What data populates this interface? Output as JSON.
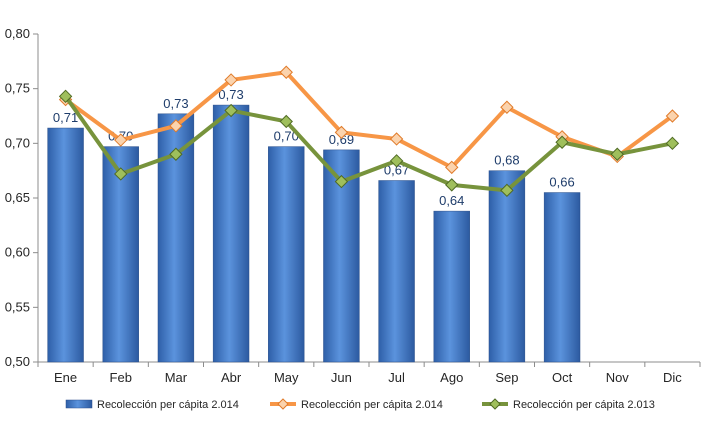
{
  "chart_data": {
    "type": "bar",
    "title": "",
    "xlabel": "",
    "ylabel": "",
    "categories": [
      "Ene",
      "Feb",
      "Mar",
      "Abr",
      "May",
      "Jun",
      "Jul",
      "Ago",
      "Sep",
      "Oct",
      "Nov",
      "Dic"
    ],
    "ylim": [
      0.5,
      0.8
    ],
    "yticks": [
      "0,50",
      "0,55",
      "0,60",
      "0,65",
      "0,70",
      "0,75",
      "0,80"
    ],
    "grid": false,
    "legend_position": "bottom",
    "series": [
      {
        "name": "Recolección per cápita 2.014",
        "type": "bar",
        "color": "#4a7ec8",
        "values": [
          0.714,
          0.697,
          0.727,
          0.735,
          0.697,
          0.694,
          0.666,
          0.638,
          0.675,
          0.655,
          null,
          null
        ],
        "labels": [
          "0,71",
          "0,70",
          "0,73",
          "0,73",
          "0,70",
          "0,69",
          "0,67",
          "0,64",
          "0,68",
          "0,66",
          "",
          ""
        ]
      },
      {
        "name": "Recolección per cápita 2.014",
        "type": "line",
        "color": "#f79646",
        "marker": "diamond",
        "values": [
          0.74,
          0.703,
          0.716,
          0.758,
          0.765,
          0.71,
          0.704,
          0.678,
          0.733,
          0.706,
          0.688,
          0.725
        ]
      },
      {
        "name": "Recolección per cápita 2.013",
        "type": "line",
        "color": "#77933c",
        "marker": "diamond",
        "values": [
          0.743,
          0.672,
          0.69,
          0.73,
          0.72,
          0.665,
          0.684,
          0.662,
          0.657,
          0.701,
          0.69,
          0.7
        ]
      }
    ]
  }
}
